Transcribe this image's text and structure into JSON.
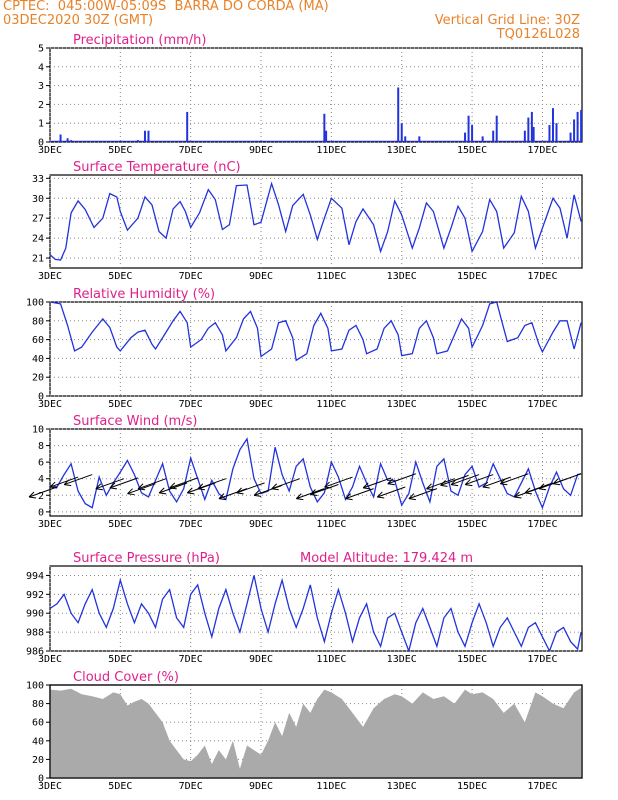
{
  "header": {
    "line1_left": "CPTEC:  045:00W-05:09S  BARRA DO CORDA (MA)",
    "line2_left": "03DEC2020 30Z (GMT)",
    "line2_right": "Vertical Grid Line: 30Z",
    "line3_right": "TQ0126L028"
  },
  "colors": {
    "line": "#2233dd",
    "title": "#e0208a",
    "header": "#e8822a",
    "cloud": "#aaaaaa"
  },
  "x_ticks": [
    "3DEC",
    "5DEC",
    "7DEC",
    "9DEC",
    "11DEC",
    "13DEC",
    "15DEC",
    "17DEC"
  ],
  "x_tick_days": [
    3,
    5,
    7,
    9,
    11,
    13,
    15,
    17
  ],
  "x_domain": [
    3,
    18.125
  ],
  "chart_data": [
    {
      "type": "bar",
      "title": "Precipitation (mm/h)",
      "ylim": [
        0,
        5
      ],
      "yticks": [
        0,
        1,
        2,
        3,
        4,
        5
      ],
      "bars": [
        [
          3.3,
          0.4
        ],
        [
          3.5,
          0.2
        ],
        [
          3.6,
          0.1
        ],
        [
          5.5,
          0.1
        ],
        [
          5.7,
          0.6
        ],
        [
          5.8,
          0.6
        ],
        [
          6.9,
          1.6
        ],
        [
          10.8,
          1.5
        ],
        [
          10.85,
          0.6
        ],
        [
          12.9,
          2.9
        ],
        [
          13.0,
          1.0
        ],
        [
          13.1,
          0.3
        ],
        [
          13.5,
          0.3
        ],
        [
          14.8,
          0.5
        ],
        [
          14.9,
          1.4
        ],
        [
          15.0,
          0.9
        ],
        [
          15.3,
          0.3
        ],
        [
          15.6,
          0.6
        ],
        [
          15.7,
          1.4
        ],
        [
          16.5,
          0.6
        ],
        [
          16.6,
          1.3
        ],
        [
          16.7,
          1.6
        ],
        [
          16.75,
          0.8
        ],
        [
          17.2,
          0.9
        ],
        [
          17.3,
          1.8
        ],
        [
          17.4,
          1.0
        ],
        [
          17.8,
          0.5
        ],
        [
          17.9,
          1.2
        ],
        [
          18.0,
          1.6
        ],
        [
          18.1,
          1.7
        ]
      ]
    },
    {
      "type": "line",
      "title": "Surface Temperature (nC)",
      "ylim": [
        19.5,
        33.5
      ],
      "yticks": [
        21,
        24,
        27,
        30,
        33
      ],
      "x": [
        3.0,
        3.15,
        3.3,
        3.45,
        3.6,
        3.8,
        4.0,
        4.25,
        4.5,
        4.7,
        4.9,
        5.0,
        5.2,
        5.5,
        5.7,
        5.9,
        6.1,
        6.3,
        6.5,
        6.7,
        6.85,
        7.0,
        7.25,
        7.5,
        7.7,
        7.9,
        8.1,
        8.3,
        8.6,
        8.8,
        9.0,
        9.3,
        9.5,
        9.7,
        9.9,
        10.2,
        10.4,
        10.6,
        10.8,
        11.0,
        11.3,
        11.5,
        11.7,
        11.9,
        12.2,
        12.4,
        12.6,
        12.8,
        13.0,
        13.3,
        13.5,
        13.7,
        13.9,
        14.2,
        14.4,
        14.6,
        14.8,
        15.0,
        15.3,
        15.5,
        15.7,
        15.9,
        16.2,
        16.4,
        16.6,
        16.8,
        17.0,
        17.3,
        17.5,
        17.7,
        17.9,
        18.1
      ],
      "y": [
        21.5,
        20.8,
        20.7,
        22.5,
        27.8,
        29.6,
        28.3,
        25.6,
        27.0,
        30.7,
        30.2,
        28.0,
        25.2,
        27.0,
        30.2,
        29.0,
        25.0,
        24.0,
        28.4,
        29.5,
        28.0,
        25.6,
        27.8,
        31.3,
        29.8,
        25.3,
        26.0,
        31.9,
        32.0,
        26.0,
        26.4,
        32.2,
        29.0,
        25.0,
        28.9,
        30.6,
        27.5,
        23.8,
        27.0,
        30.0,
        28.5,
        23.0,
        26.5,
        28.4,
        26.0,
        22.0,
        25.0,
        29.6,
        27.5,
        22.5,
        25.5,
        29.3,
        28.0,
        22.5,
        25.5,
        28.8,
        27.0,
        22.0,
        25.0,
        29.8,
        28.0,
        22.5,
        24.8,
        30.3,
        28.0,
        22.5,
        25.5,
        30.0,
        28.5,
        24.0,
        30.5,
        26.5
      ]
    },
    {
      "type": "line",
      "title": "Relative Humidity (%)",
      "ylim": [
        0,
        100
      ],
      "yticks": [
        0,
        20,
        40,
        60,
        80,
        100
      ],
      "x": [
        3.0,
        3.3,
        3.5,
        3.7,
        3.9,
        4.2,
        4.5,
        4.7,
        4.9,
        5.0,
        5.3,
        5.5,
        5.7,
        5.9,
        6.0,
        6.3,
        6.5,
        6.7,
        6.9,
        7.0,
        7.3,
        7.5,
        7.7,
        7.9,
        8.0,
        8.3,
        8.5,
        8.7,
        8.9,
        9.0,
        9.3,
        9.5,
        9.7,
        9.9,
        10.0,
        10.3,
        10.5,
        10.7,
        10.9,
        11.0,
        11.3,
        11.5,
        11.7,
        11.9,
        12.0,
        12.3,
        12.5,
        12.7,
        12.9,
        13.0,
        13.3,
        13.5,
        13.7,
        13.9,
        14.0,
        14.3,
        14.5,
        14.7,
        14.9,
        15.0,
        15.3,
        15.5,
        15.7,
        15.9,
        16.0,
        16.3,
        16.5,
        16.7,
        16.9,
        17.0,
        17.3,
        17.5,
        17.7,
        17.9,
        18.1
      ],
      "y": [
        100,
        98,
        75,
        48,
        52,
        68,
        82,
        73,
        52,
        48,
        62,
        68,
        70,
        55,
        50,
        68,
        80,
        90,
        78,
        52,
        60,
        72,
        78,
        65,
        48,
        62,
        82,
        90,
        72,
        42,
        50,
        78,
        80,
        62,
        38,
        45,
        75,
        88,
        72,
        48,
        50,
        70,
        75,
        60,
        45,
        50,
        72,
        80,
        65,
        43,
        45,
        72,
        80,
        62,
        45,
        48,
        65,
        82,
        72,
        52,
        75,
        98,
        100,
        72,
        58,
        62,
        75,
        78,
        55,
        47,
        68,
        80,
        80,
        50,
        78
      ]
    },
    {
      "type": "line",
      "title": "Surface Wind (m/s)",
      "ylim": [
        -0.5,
        10
      ],
      "yticks": [
        0,
        2,
        4,
        6,
        8,
        10
      ],
      "x": [
        3.0,
        3.2,
        3.4,
        3.6,
        3.8,
        4.0,
        4.2,
        4.4,
        4.6,
        4.8,
        5.0,
        5.2,
        5.4,
        5.6,
        5.8,
        6.0,
        6.2,
        6.4,
        6.6,
        6.8,
        7.0,
        7.2,
        7.4,
        7.6,
        7.8,
        8.0,
        8.2,
        8.4,
        8.6,
        8.8,
        9.0,
        9.2,
        9.4,
        9.6,
        9.8,
        10.0,
        10.2,
        10.4,
        10.6,
        10.8,
        11.0,
        11.2,
        11.4,
        11.6,
        11.8,
        12.0,
        12.2,
        12.4,
        12.6,
        12.8,
        13.0,
        13.2,
        13.4,
        13.6,
        13.8,
        14.0,
        14.2,
        14.4,
        14.6,
        14.8,
        15.0,
        15.2,
        15.4,
        15.6,
        15.8,
        16.0,
        16.2,
        16.4,
        16.6,
        16.8,
        17.0,
        17.2,
        17.4,
        17.6,
        17.8,
        18.0,
        18.1
      ],
      "y": [
        3.2,
        3.0,
        4.5,
        5.8,
        2.5,
        1.0,
        0.5,
        4.2,
        2.0,
        3.5,
        4.8,
        6.2,
        4.5,
        2.3,
        1.8,
        3.8,
        5.8,
        2.5,
        1.2,
        2.8,
        6.5,
        4.0,
        1.5,
        3.8,
        2.2,
        1.5,
        5.2,
        7.5,
        8.8,
        4.0,
        2.2,
        2.5,
        7.8,
        4.5,
        2.5,
        5.5,
        6.4,
        3.0,
        1.2,
        2.3,
        6.0,
        4.2,
        1.5,
        3.0,
        5.5,
        3.5,
        1.8,
        5.8,
        3.8,
        3.8,
        0.8,
        2.2,
        6.0,
        3.5,
        1.2,
        5.5,
        6.4,
        2.5,
        2.0,
        4.5,
        5.5,
        3.0,
        3.5,
        5.8,
        4.0,
        2.2,
        1.8,
        3.5,
        5.2,
        2.5,
        0.5,
        3.0,
        4.8,
        2.8,
        2.0,
        4.5,
        4.6
      ],
      "arrows": [
        [
          3.2,
          3.0
        ],
        [
          3.8,
          4.2
        ],
        [
          4.2,
          4.5
        ],
        [
          5.1,
          4.0
        ],
        [
          5.5,
          4.1
        ],
        [
          6.0,
          3.4
        ],
        [
          6.3,
          4.0
        ],
        [
          6.9,
          3.5
        ],
        [
          7.2,
          4.1
        ],
        [
          7.7,
          3.5
        ],
        [
          8.0,
          4.0
        ],
        [
          8.6,
          2.8
        ],
        [
          9.1,
          3.5
        ],
        [
          9.6,
          3.2
        ],
        [
          10.1,
          4.0
        ],
        [
          10.8,
          2.8
        ],
        [
          11.2,
          3.3
        ],
        [
          11.6,
          4.2
        ],
        [
          12.2,
          2.8
        ],
        [
          12.7,
          4.1
        ],
        [
          13.1,
          3.0
        ],
        [
          13.4,
          4.6
        ],
        [
          14.0,
          2.8
        ],
        [
          14.5,
          4.0
        ],
        [
          14.9,
          4.4
        ],
        [
          15.2,
          4.5
        ],
        [
          15.6,
          4.5
        ],
        [
          16.1,
          4.2
        ],
        [
          16.6,
          4.6
        ],
        [
          17.0,
          3.0
        ],
        [
          17.3,
          3.5
        ],
        [
          17.7,
          4.0
        ],
        [
          18.1,
          4.6
        ]
      ]
    },
    {
      "type": "line",
      "title": "Surface Pressure (hPa)",
      "annotation": "Model Altitude: 179.424 m",
      "ylim": [
        986,
        995
      ],
      "yticks": [
        986,
        988,
        990,
        992,
        994
      ],
      "x": [
        3.0,
        3.2,
        3.4,
        3.6,
        3.8,
        4.0,
        4.2,
        4.4,
        4.6,
        4.8,
        5.0,
        5.2,
        5.4,
        5.6,
        5.8,
        6.0,
        6.2,
        6.4,
        6.6,
        6.8,
        7.0,
        7.2,
        7.4,
        7.6,
        7.8,
        8.0,
        8.2,
        8.4,
        8.6,
        8.8,
        9.0,
        9.2,
        9.4,
        9.6,
        9.8,
        10.0,
        10.2,
        10.4,
        10.6,
        10.8,
        11.0,
        11.2,
        11.4,
        11.6,
        11.8,
        12.0,
        12.2,
        12.4,
        12.6,
        12.8,
        13.0,
        13.2,
        13.4,
        13.6,
        13.8,
        14.0,
        14.2,
        14.4,
        14.6,
        14.8,
        15.0,
        15.2,
        15.4,
        15.6,
        15.8,
        16.0,
        16.2,
        16.4,
        16.6,
        16.8,
        17.0,
        17.2,
        17.4,
        17.6,
        17.8,
        18.0,
        18.1
      ],
      "y": [
        990.5,
        991.0,
        992.0,
        990.0,
        989.0,
        991.0,
        992.5,
        990.0,
        988.5,
        990.5,
        993.5,
        991.0,
        989.0,
        991.0,
        990.0,
        988.5,
        991.5,
        992.5,
        989.5,
        988.5,
        992.0,
        993.0,
        990.0,
        987.5,
        990.5,
        992.5,
        990.0,
        988.0,
        991.0,
        994.0,
        990.5,
        988.0,
        991.0,
        993.5,
        990.5,
        988.5,
        990.5,
        993.0,
        989.5,
        987.0,
        990.0,
        992.5,
        990.0,
        987.0,
        989.5,
        991.0,
        988.0,
        986.5,
        989.5,
        990.0,
        988.0,
        986.0,
        989.0,
        990.5,
        988.5,
        986.5,
        989.5,
        990.5,
        988.0,
        986.5,
        989.0,
        991.0,
        989.0,
        986.5,
        988.5,
        989.5,
        988.0,
        986.5,
        988.5,
        989.0,
        987.5,
        986.0,
        988.0,
        988.5,
        987.0,
        986.2,
        988.0
      ]
    },
    {
      "type": "area",
      "title": "Cloud Cover (%)",
      "ylim": [
        0,
        100
      ],
      "yticks": [
        0,
        20,
        40,
        60,
        80,
        100
      ],
      "x": [
        3.0,
        3.3,
        3.6,
        3.9,
        4.2,
        4.5,
        4.8,
        5.0,
        5.2,
        5.4,
        5.6,
        5.8,
        6.0,
        6.2,
        6.4,
        6.6,
        6.8,
        7.0,
        7.2,
        7.4,
        7.6,
        7.8,
        8.0,
        8.2,
        8.4,
        8.6,
        8.8,
        9.0,
        9.2,
        9.4,
        9.6,
        9.8,
        10.0,
        10.2,
        10.4,
        10.6,
        10.8,
        11.0,
        11.3,
        11.6,
        11.9,
        12.2,
        12.5,
        12.8,
        13.0,
        13.3,
        13.6,
        13.9,
        14.2,
        14.5,
        14.8,
        15.0,
        15.3,
        15.6,
        15.9,
        16.2,
        16.5,
        16.8,
        17.0,
        17.3,
        17.6,
        17.9,
        18.1
      ],
      "y": [
        95,
        94,
        96,
        90,
        88,
        85,
        92,
        90,
        78,
        82,
        85,
        80,
        70,
        60,
        40,
        30,
        20,
        18,
        25,
        35,
        15,
        30,
        20,
        40,
        10,
        35,
        30,
        25,
        40,
        60,
        45,
        70,
        55,
        80,
        70,
        85,
        95,
        92,
        85,
        70,
        55,
        75,
        85,
        90,
        88,
        80,
        92,
        85,
        88,
        80,
        95,
        90,
        92,
        85,
        70,
        80,
        60,
        92,
        88,
        80,
        75,
        92,
        97
      ]
    }
  ]
}
